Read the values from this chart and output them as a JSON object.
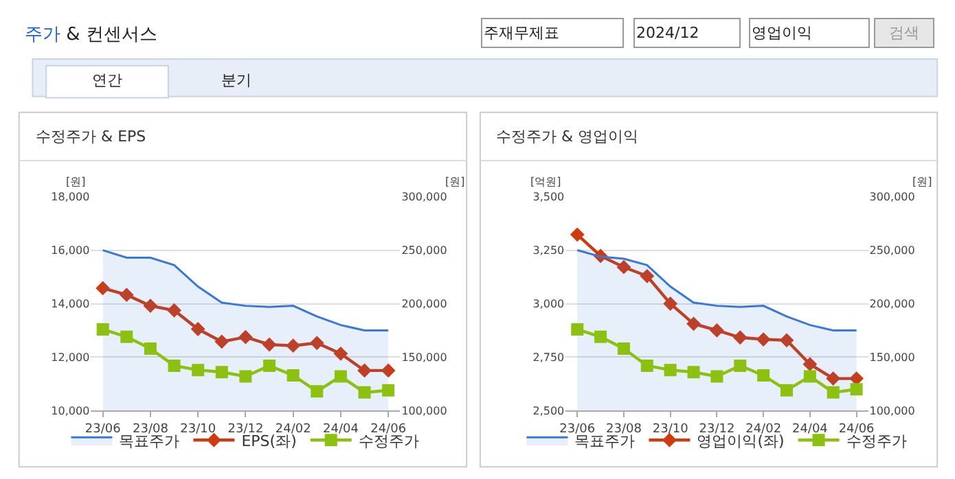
{
  "chart_data": [
    {
      "type": "line",
      "title": "수정주가 & EPS",
      "ylabel": "[원]",
      "y2label": "[원]",
      "annotations": [
        "주가 & 컨센서스",
        "주재무제표",
        "2024/12",
        "영업이익",
        "검색",
        "연간",
        "분기"
      ],
      "categories": [
        "23/06",
        null,
        "23/08",
        null,
        "23/10",
        null,
        "23/12",
        null,
        "24/02",
        null,
        "24/04",
        null,
        "24/06"
      ],
      "series": [
        {
          "name": "목표주가",
          "type": "area",
          "axis": "y2",
          "color": "#3a78d8",
          "marker": "none",
          "values": [
            250000,
            243000,
            243000,
            236000,
            216000,
            201000,
            198000,
            197000,
            198000,
            188000,
            180000,
            175000,
            175000
          ]
        },
        {
          "name": "EPS(좌)",
          "color": "#d03a10",
          "marker": "diamond",
          "values": [
            14580,
            14330,
            13920,
            13750,
            13050,
            12580,
            12750,
            12470,
            12430,
            12530,
            12130,
            11500,
            11500
          ]
        },
        {
          "name": "수정주가",
          "axis": "y2",
          "color": "#8cc011",
          "marker": "square",
          "values": [
            176000,
            169000,
            158000,
            142000,
            138000,
            136000,
            132000,
            142000,
            133000,
            118000,
            132000,
            117000,
            119000
          ]
        }
      ],
      "ylim": [
        10000,
        18000
      ],
      "yticks": [
        {
          "value": 10000,
          "label": "10,000"
        },
        {
          "value": 12000,
          "label": "12,000"
        },
        {
          "value": 14000,
          "label": "14,000"
        },
        {
          "value": 16000,
          "label": "16,000"
        },
        {
          "value": 18000,
          "label": "18,000"
        }
      ],
      "y2lim": [
        100000,
        300000
      ],
      "y2ticks": [
        {
          "value": 100000,
          "label": "100,000"
        },
        {
          "value": 150000,
          "label": "150,000"
        },
        {
          "value": 200000,
          "label": "200,000"
        },
        {
          "value": 250000,
          "label": "250,000"
        },
        {
          "value": 300000,
          "label": "300,000"
        }
      ],
      "grid": "y",
      "legend": "bottom"
    },
    {
      "type": "line",
      "title": "수정주가 & 영업이익",
      "ylabel": "[억원]",
      "y2label": "[원]",
      "categories": [
        "23/06",
        null,
        "23/08",
        null,
        "23/10",
        null,
        "23/12",
        null,
        "24/02",
        null,
        "24/04",
        null,
        "24/06"
      ],
      "series": [
        {
          "name": "목표주가",
          "type": "area",
          "axis": "y2",
          "color": "#3a78d8",
          "marker": "none",
          "values": [
            250000,
            244000,
            242000,
            236000,
            216000,
            201000,
            198000,
            197000,
            198000,
            188000,
            180000,
            175000,
            175000
          ]
        },
        {
          "name": "영업이익(좌)",
          "color": "#d03a10",
          "marker": "diamond",
          "values": [
            3323,
            3223,
            3171,
            3129,
            3000,
            2906,
            2875,
            2842,
            2833,
            2829,
            2717,
            2650,
            2650
          ]
        },
        {
          "name": "수정주가",
          "axis": "y2",
          "color": "#8cc011",
          "marker": "square",
          "values": [
            176000,
            169000,
            158000,
            142000,
            138000,
            136000,
            132000,
            142000,
            133000,
            119000,
            132000,
            117000,
            120000
          ]
        }
      ],
      "ylim": [
        2500,
        3500
      ],
      "yticks": [
        {
          "value": 2500,
          "label": "2,500"
        },
        {
          "value": 2750,
          "label": "2,750"
        },
        {
          "value": 3000,
          "label": "3,000"
        },
        {
          "value": 3250,
          "label": "3,250"
        },
        {
          "value": 3500,
          "label": "3,500"
        }
      ],
      "y2lim": [
        100000,
        300000
      ],
      "y2ticks": [
        {
          "value": 100000,
          "label": "100,000"
        },
        {
          "value": 150000,
          "label": "150,000"
        },
        {
          "value": 200000,
          "label": "200,000"
        },
        {
          "value": 250000,
          "label": "250,000"
        },
        {
          "value": 300000,
          "label": "300,000"
        }
      ],
      "grid": "y",
      "legend": "bottom"
    }
  ]
}
